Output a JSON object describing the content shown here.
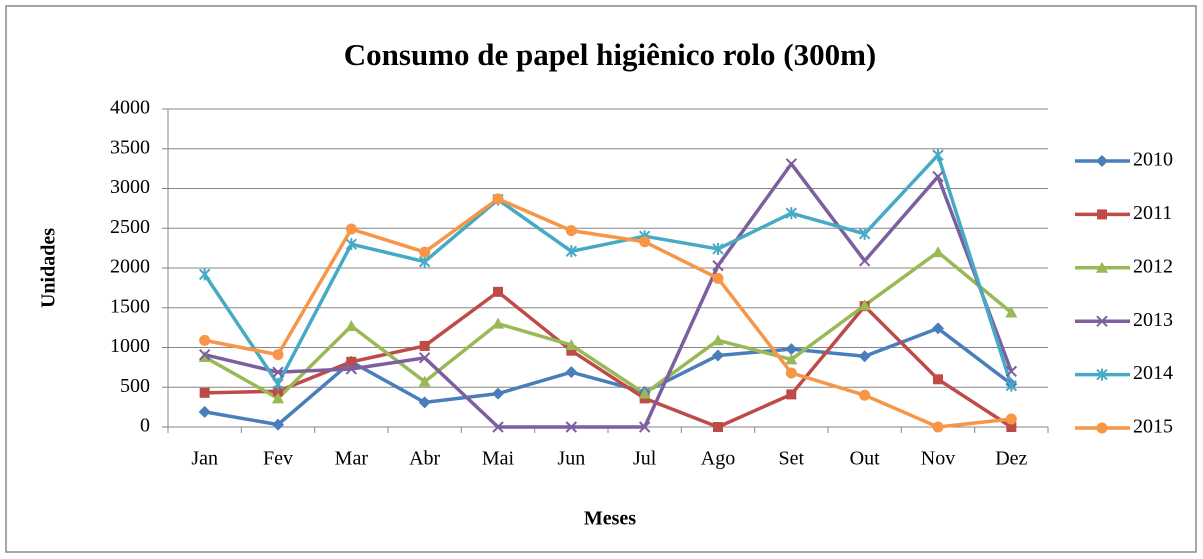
{
  "chart_data": {
    "type": "line",
    "title": "Consumo de papel higiênico rolo (300m)",
    "x_label": "Meses",
    "y_label": "Unidades",
    "categories": [
      "Jan",
      "Fev",
      "Mar",
      "Abr",
      "Mai",
      "Jun",
      "Jul",
      "Ago",
      "Set",
      "Out",
      "Nov",
      "Dez"
    ],
    "series": [
      {
        "name": "2010",
        "color": "#4a7ebb",
        "marker": "diamond",
        "values": [
          190,
          30,
          820,
          310,
          420,
          690,
          440,
          900,
          980,
          890,
          1240,
          540
        ]
      },
      {
        "name": "2011",
        "color": "#be4b48",
        "marker": "square",
        "values": [
          430,
          450,
          820,
          1020,
          1700,
          960,
          360,
          0,
          410,
          1520,
          600,
          0
        ]
      },
      {
        "name": "2012",
        "color": "#98b954",
        "marker": "triangle",
        "values": [
          880,
          360,
          1270,
          570,
          1300,
          1030,
          420,
          1090,
          850,
          1530,
          2200,
          1440
        ]
      },
      {
        "name": "2013",
        "color": "#7d5fa0",
        "marker": "x",
        "values": [
          910,
          690,
          730,
          870,
          0,
          0,
          0,
          2030,
          3310,
          2090,
          3150,
          700
        ]
      },
      {
        "name": "2014",
        "color": "#46aac5",
        "marker": "star",
        "values": [
          1920,
          540,
          2300,
          2080,
          2860,
          2210,
          2400,
          2240,
          2690,
          2430,
          3420,
          520
        ]
      },
      {
        "name": "2015",
        "color": "#f79646",
        "marker": "circle",
        "values": [
          1090,
          910,
          2490,
          2200,
          2870,
          2470,
          2330,
          1870,
          680,
          400,
          0,
          100
        ]
      }
    ],
    "ylim": [
      0,
      4000
    ],
    "yticks": [
      0,
      500,
      1000,
      1500,
      2000,
      2500,
      3000,
      3500,
      4000
    ],
    "grid": true,
    "legend": "right"
  }
}
